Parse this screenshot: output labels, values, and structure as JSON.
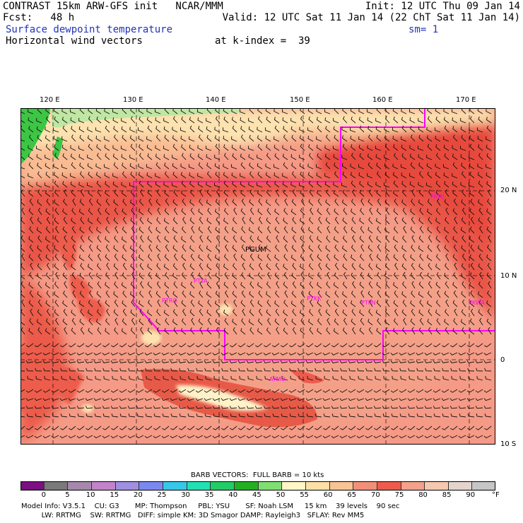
{
  "header": {
    "line1_left": "CONTRAST 15km ARW-GFS init   NCAR/MMM",
    "line1_right": "Init: 12 UTC Thu 09 Jan 14",
    "line2_left": "Fcst:   48 h",
    "line2_right": "Valid: 12 UTC Sat 11 Jan 14 (22 ChT Sat 11 Jan 14)",
    "line3_left": "Surface dewpoint temperature",
    "line3_right": "sm= 1",
    "line4_left": "Horizontal wind vectors",
    "line4_right": "at k-index =  39"
  },
  "axes": {
    "lon_labels": [
      "120 E",
      "130 E",
      "140 E",
      "150 E",
      "160 E",
      "170 E"
    ],
    "lat_labels": [
      "20 N",
      "10 N",
      "0",
      "10 S"
    ]
  },
  "map_labels": {
    "pgum": "PGUM",
    "stations": [
      "PTRO",
      "PTYA",
      "PTKK",
      "PTPN",
      "PKMJ",
      "AYMO",
      "PKWA"
    ]
  },
  "colors": {
    "ocean_deep": "#e84a3e",
    "ocean_mid": "#f2776a",
    "ocean_light": "#f59a86",
    "north_warm": "#f9bb92",
    "north_cool": "#fde3b0",
    "land_green": "#3cc644",
    "boundary": "#ff00ff",
    "mountain": "#fff2c8"
  },
  "legend": {
    "barb_title": "BARB VECTORS:  FULL BARB = 10 kts",
    "unit": "°F",
    "ticks": [
      "0",
      "5",
      "10",
      "15",
      "20",
      "25",
      "30",
      "35",
      "40",
      "45",
      "50",
      "55",
      "60",
      "65",
      "70",
      "75",
      "80",
      "85",
      "90"
    ],
    "colors": [
      "#7c0f82",
      "#7a7a7a",
      "#a589ad",
      "#c383c8",
      "#9e90e0",
      "#7a89f0",
      "#35c8e8",
      "#22e0b4",
      "#22cc66",
      "#22b022",
      "#80de70",
      "#fff5c6",
      "#fde0a6",
      "#f9c394",
      "#f38f78",
      "#ee5b4c",
      "#f3a08c",
      "#f6c8b0",
      "#e4d4cc",
      "#c6c6c6"
    ]
  },
  "footer": {
    "line1": "Model Info: V3.5.1    CU: G3       MP: Thompson     PBL: YSU       SF: Noah LSM     15 km    39 levels    90 sec",
    "line2": "         LW: RRTMG    SW: RRTMG   DIFF: simple KM: 3D Smagor DAMP: Rayleigh3   SFLAY: Rev MM5"
  }
}
